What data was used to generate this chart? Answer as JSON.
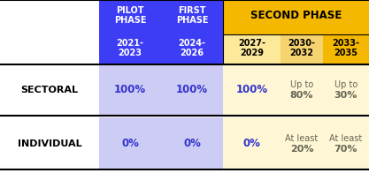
{
  "row_labels": [
    "SECTORAL",
    "INDIVIDUAL"
  ],
  "second_phase_label": "SECOND PHASE",
  "col0_header": "PILOT\nPHASE\n2021-\n2023",
  "col1_header": "FIRST\nPHASE\n2024-\n2026",
  "year_labels": [
    "2027-\n2029",
    "2030-\n2032",
    "2033-\n2035"
  ],
  "cells": [
    [
      "100%",
      "100%",
      "100%",
      "Up to\n80%",
      "Up to\n30%"
    ],
    [
      "0%",
      "0%",
      "0%",
      "At least\n20%",
      "At least\n70%"
    ]
  ],
  "header_blue": "#3d3df5",
  "header_yellow": "#f5b800",
  "year_col0_bg": "#fde99a",
  "year_col1_bg": "#f5d470",
  "year_col2_bg": "#f5b800",
  "cell_lavender": "#ccccf5",
  "cell_light_yellow": "#fef6d5",
  "blue_text": "#3333cc",
  "dark_text": "#666655",
  "white": "#ffffff",
  "black": "#000000",
  "yellow_text": "#f5b800"
}
